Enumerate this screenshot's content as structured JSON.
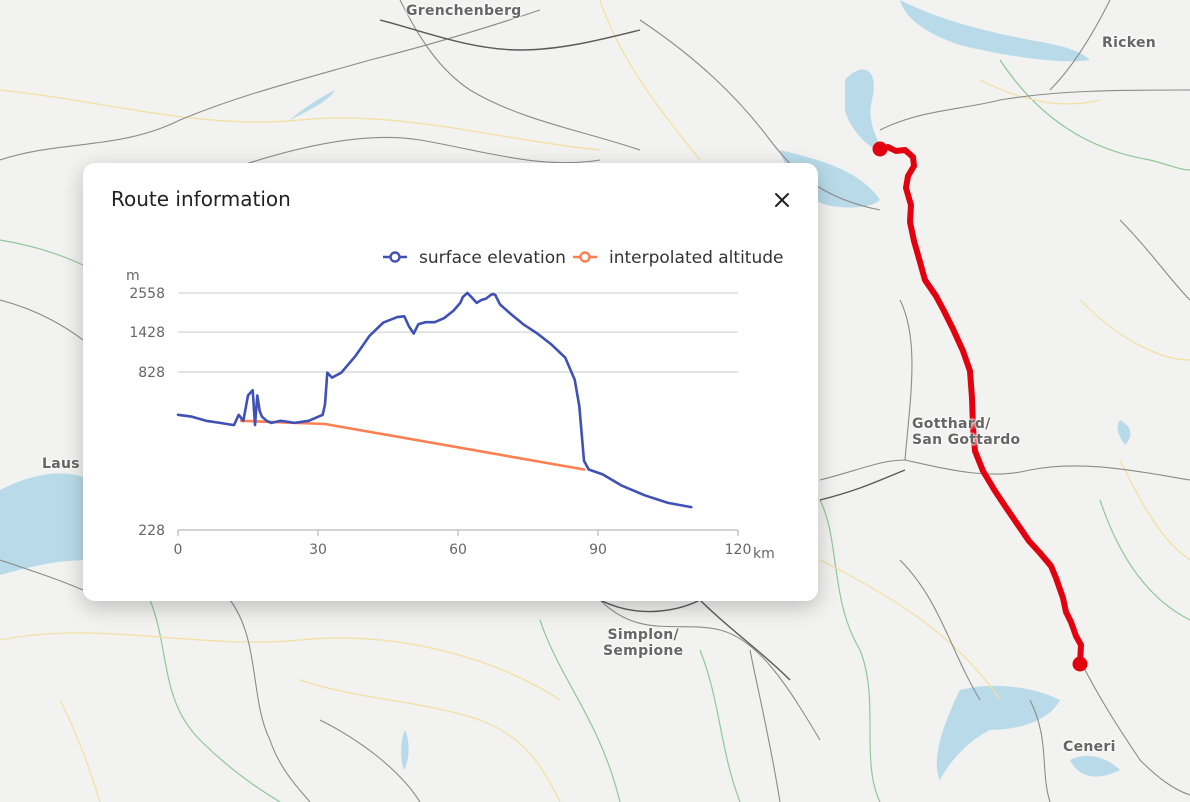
{
  "map": {
    "labels": [
      {
        "id": "grenchenberg",
        "lines": [
          "Grenchenberg"
        ]
      },
      {
        "id": "ricken",
        "lines": [
          "Ricken"
        ]
      },
      {
        "id": "lausanne",
        "lines": [
          "Laus"
        ]
      },
      {
        "id": "gotthard",
        "lines": [
          "Gotthard/",
          "San Gottardo"
        ]
      },
      {
        "id": "simplon",
        "lines": [
          "Simplon/",
          "Sempione"
        ]
      },
      {
        "id": "ceneri",
        "lines": [
          "Ceneri"
        ]
      }
    ],
    "route_color": "#e3000f"
  },
  "panel": {
    "title": "Route information",
    "close_icon": "close-icon"
  },
  "chart_data": {
    "type": "line",
    "ylabel": "m",
    "xlabel": "km",
    "x_ticks": [
      0,
      30,
      60,
      90,
      120
    ],
    "y_ticks": [
      228,
      828,
      1428,
      2558
    ],
    "xlim": [
      0,
      120
    ],
    "ylim": [
      228,
      2558
    ],
    "grid": true,
    "legend_position": "top-right",
    "series": [
      {
        "name": "surface elevation",
        "color": "#3f51b5",
        "x": [
          0,
          3,
          6,
          9,
          12,
          13,
          14,
          15,
          15.5,
          16,
          16.5,
          17,
          17.5,
          18,
          19,
          20,
          22,
          25,
          28,
          31,
          31.5,
          32,
          33,
          35,
          38,
          41,
          44,
          47,
          48.5,
          49.5,
          50.5,
          51.5,
          53,
          55,
          57,
          59,
          60.5,
          61,
          62,
          63,
          64,
          65,
          66,
          67,
          67.5,
          68,
          69,
          71,
          74,
          77,
          80,
          83,
          85,
          86,
          87,
          88,
          91,
          95,
          100,
          105,
          110
        ],
        "y": [
          500,
          490,
          470,
          460,
          450,
          500,
          470,
          620,
          640,
          660,
          450,
          620,
          520,
          490,
          470,
          460,
          470,
          460,
          470,
          500,
          560,
          820,
          770,
          820,
          1020,
          1350,
          1640,
          1780,
          1800,
          1550,
          1400,
          1600,
          1650,
          1650,
          1750,
          1950,
          2200,
          2400,
          2560,
          2380,
          2200,
          2300,
          2350,
          2480,
          2520,
          2480,
          2150,
          1900,
          1600,
          1400,
          1200,
          1000,
          750,
          550,
          330,
          310,
          300,
          280,
          265,
          255,
          250
        ]
      },
      {
        "name": "interpolated altitude",
        "color": "#ff7f50",
        "x": [
          13.5,
          31.5,
          87
        ],
        "y": [
          470,
          455,
          310
        ]
      }
    ]
  }
}
